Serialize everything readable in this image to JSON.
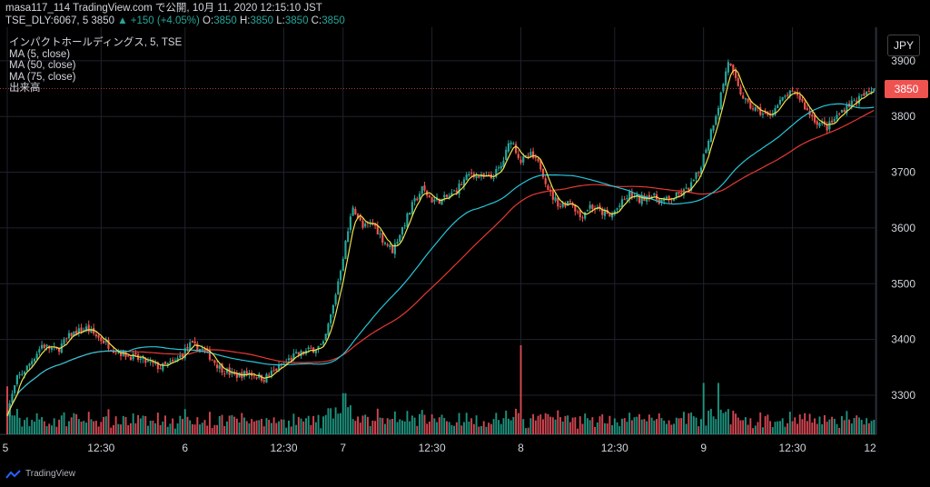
{
  "header": {
    "line1": "masa117_114 TradingView.com で公開, 10月 11, 2020 12:15:10 JST",
    "line2_prefix": "TSE_DLY:6067, 5 3850 ",
    "line2_change": "▲ +150 (+4.05%)",
    "ohlc_o_label": " O:",
    "ohlc_o": "3850",
    "ohlc_h_label": " H:",
    "ohlc_h": "3850",
    "ohlc_l_label": " L:",
    "ohlc_l": "3850",
    "ohlc_c_label": " C:",
    "ohlc_c": "3850"
  },
  "legend": {
    "title": "インパクトホールディングス, 5, TSE",
    "ma5": "MA (5, close)",
    "ma50": "MA (50, close)",
    "ma75": "MA (75, close)",
    "volume": "出来高"
  },
  "currency_button": "JPY",
  "last_price_badge": "3850",
  "footer": {
    "brand": "TradingView"
  },
  "colors": {
    "up": "#26a69a",
    "down": "#ef5350",
    "volume_up": "#22ab94",
    "volume_down": "#f7525f",
    "ma5": "#f0e14a",
    "ma50": "#26c6da",
    "ma75": "#e53935",
    "grid": "#1e222d",
    "last_price_line": "#ef5350"
  },
  "chart_data": {
    "type": "candlestick",
    "symbol": "TSE_DLY:6067",
    "interval": "5",
    "ylim": [
      3230,
      3960
    ],
    "y_ticks": [
      3300,
      3400,
      3500,
      3600,
      3700,
      3800,
      3900
    ],
    "x_ticks": [
      "5",
      "12:30",
      "6",
      "12:30",
      "7",
      "12:30",
      "8",
      "12:30",
      "9",
      "12:30",
      "12"
    ],
    "last_price": 3850,
    "anchors_close": [
      [
        0,
        3270
      ],
      [
        4,
        3330
      ],
      [
        8,
        3350
      ],
      [
        14,
        3390
      ],
      [
        20,
        3380
      ],
      [
        26,
        3410
      ],
      [
        32,
        3420
      ],
      [
        38,
        3400
      ],
      [
        44,
        3380
      ],
      [
        50,
        3370
      ],
      [
        56,
        3360
      ],
      [
        62,
        3350
      ],
      [
        68,
        3360
      ],
      [
        74,
        3390
      ],
      [
        80,
        3380
      ],
      [
        86,
        3350
      ],
      [
        92,
        3335
      ],
      [
        98,
        3340
      ],
      [
        104,
        3330
      ],
      [
        110,
        3350
      ],
      [
        116,
        3370
      ],
      [
        122,
        3380
      ],
      [
        128,
        3390
      ],
      [
        132,
        3460
      ],
      [
        136,
        3550
      ],
      [
        140,
        3640
      ],
      [
        144,
        3600
      ],
      [
        148,
        3610
      ],
      [
        152,
        3580
      ],
      [
        156,
        3560
      ],
      [
        160,
        3600
      ],
      [
        164,
        3640
      ],
      [
        168,
        3670
      ],
      [
        172,
        3650
      ],
      [
        176,
        3650
      ],
      [
        180,
        3660
      ],
      [
        184,
        3680
      ],
      [
        188,
        3700
      ],
      [
        192,
        3690
      ],
      [
        196,
        3690
      ],
      [
        200,
        3710
      ],
      [
        204,
        3760
      ],
      [
        208,
        3720
      ],
      [
        212,
        3730
      ],
      [
        216,
        3710
      ],
      [
        220,
        3660
      ],
      [
        224,
        3640
      ],
      [
        228,
        3650
      ],
      [
        232,
        3620
      ],
      [
        236,
        3640
      ],
      [
        240,
        3630
      ],
      [
        244,
        3620
      ],
      [
        248,
        3640
      ],
      [
        252,
        3660
      ],
      [
        256,
        3650
      ],
      [
        260,
        3660
      ],
      [
        264,
        3650
      ],
      [
        268,
        3650
      ],
      [
        272,
        3660
      ],
      [
        276,
        3670
      ],
      [
        280,
        3700
      ],
      [
        284,
        3760
      ],
      [
        288,
        3820
      ],
      [
        292,
        3900
      ],
      [
        296,
        3850
      ],
      [
        300,
        3820
      ],
      [
        304,
        3810
      ],
      [
        308,
        3800
      ],
      [
        312,
        3820
      ],
      [
        316,
        3840
      ],
      [
        320,
        3840
      ],
      [
        324,
        3810
      ],
      [
        328,
        3790
      ],
      [
        332,
        3780
      ],
      [
        336,
        3800
      ],
      [
        340,
        3820
      ],
      [
        344,
        3830
      ],
      [
        348,
        3840
      ],
      [
        351,
        3850
      ]
    ],
    "ma5_close": "5-period moving average of close",
    "ma50_close": "50-period moving average of close",
    "ma75_close": "75-period moving average of close"
  }
}
